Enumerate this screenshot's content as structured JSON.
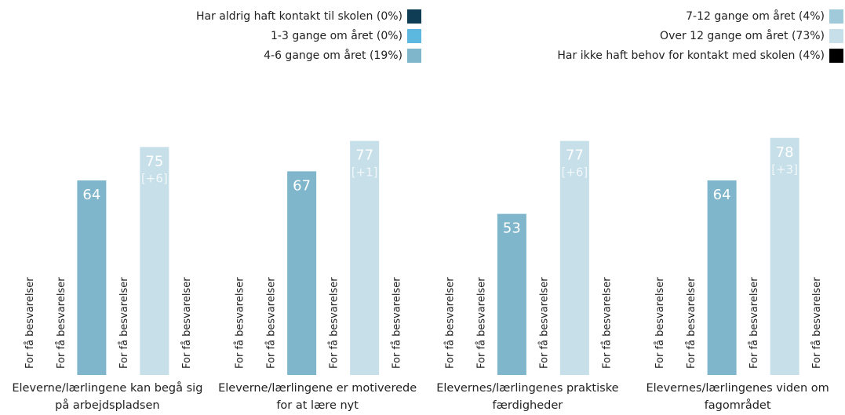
{
  "chart_data": {
    "type": "bar",
    "categories": [
      "Eleverne/lærlingene kan begå sig på arbejdspladsen",
      "Eleverne/lærlingene er motiverede for at lære nyt",
      "Elevernes/lærlingenes praktiske færdigheder",
      "Elevernes/lærlingenes viden om fagområdet"
    ],
    "series": [
      {
        "name": "Har aldrig haft kontakt til skolen (0%)",
        "color": "#0e3d55",
        "values": [
          null,
          null,
          null,
          null
        ]
      },
      {
        "name": "1-3 gange om året (0%)",
        "color": "#5cb8df",
        "values": [
          null,
          null,
          null,
          null
        ]
      },
      {
        "name": "4-6 gange om året (19%)",
        "color": "#7fb6cb",
        "values": [
          64,
          67,
          53,
          64
        ]
      },
      {
        "name": "7-12 gange om året (4%)",
        "color": "#a0c9d9",
        "values": [
          null,
          null,
          null,
          null
        ]
      },
      {
        "name": "Over 12 gange om året (73%)",
        "color": "#c6dfe9",
        "values": [
          75,
          77,
          77,
          78
        ],
        "change_labels": [
          "[+6]",
          "[+1]",
          "[+6]",
          "[+3]"
        ]
      },
      {
        "name": "Har ikke haft behov for kontakt med skolen (4%)",
        "color": "#000000",
        "values": [
          null,
          null,
          null,
          null
        ]
      }
    ],
    "missing_label": "For få besvarelser",
    "ylim": [
      0,
      100
    ]
  }
}
